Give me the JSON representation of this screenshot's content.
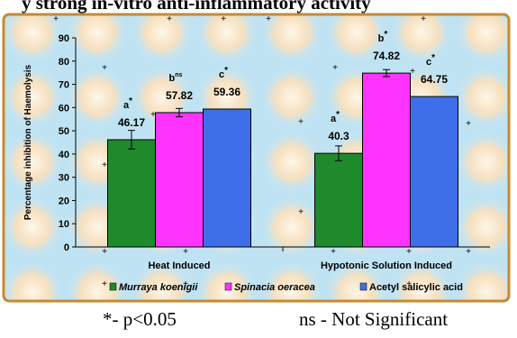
{
  "header_fragment": "y strong in-vitro anti-inflammatory activity",
  "chart_data": {
    "type": "bar",
    "categories": [
      "Heat Induced",
      "Hypotonic Solution Induced"
    ],
    "series": [
      {
        "name": "Murraya koenigii",
        "italic": true,
        "color": "#1f8a2b",
        "values": [
          46.17,
          40.3
        ],
        "error": [
          4.0,
          3.2
        ],
        "label_lines": [
          [
            "a*",
            "46.17"
          ],
          [
            "a*",
            "40.3"
          ]
        ]
      },
      {
        "name": "Spinacia oeracea",
        "italic": true,
        "color": "#ff33ff",
        "values": [
          57.82,
          74.82
        ],
        "error": [
          1.8,
          1.5
        ],
        "label_lines": [
          [
            "bns",
            "57.82"
          ],
          [
            "b*",
            "74.82"
          ]
        ]
      },
      {
        "name": "Acetyl salicylic acid",
        "italic": false,
        "color": "#3f6fe8",
        "values": [
          59.36,
          64.75
        ],
        "error": [
          0,
          0
        ],
        "label_lines": [
          [
            "c*",
            "59.36"
          ],
          [
            "c*",
            "64.75"
          ]
        ]
      }
    ],
    "ylabel": "Percentage inhibition of Haemolysis",
    "xlabel": "",
    "ylim": [
      0,
      90
    ],
    "yticks": [
      0,
      10,
      20,
      30,
      40,
      50,
      60,
      70,
      80,
      90
    ],
    "legend_position": "bottom",
    "frame_color": "#c88a2e"
  },
  "footnotes": {
    "significant": "*- p<0.05",
    "not_significant": "ns - Not Significant"
  }
}
